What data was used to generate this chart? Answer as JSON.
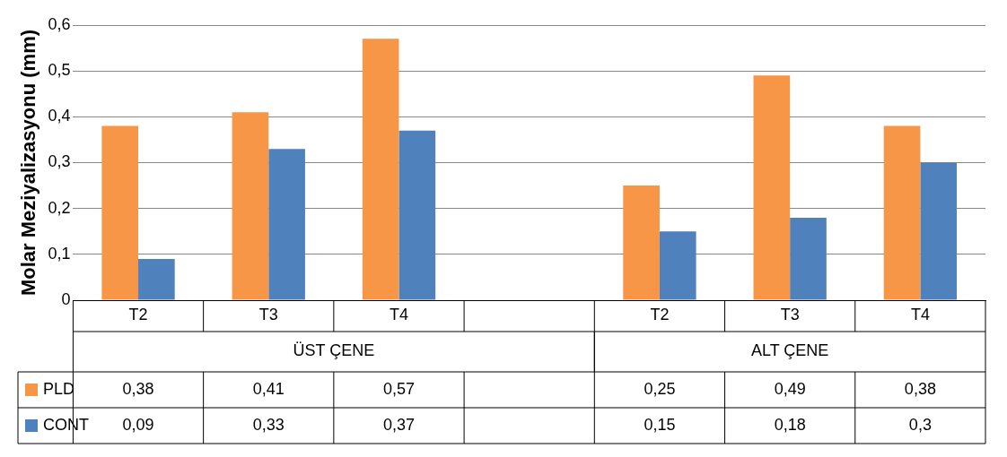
{
  "chart_data": {
    "type": "bar",
    "ylabel": "Molar Meziyalizasyonu (mm)",
    "categories": [
      "T2",
      "T3",
      "T4",
      null,
      "T2",
      "T3",
      "T4"
    ],
    "series": [
      {
        "name": "PLD",
        "color": "#f79646",
        "values": [
          0.38,
          0.41,
          0.57,
          null,
          0.25,
          0.49,
          0.38
        ],
        "value_labels": [
          "0,38",
          "0,41",
          "0,57",
          null,
          "0,25",
          "0,49",
          "0,38"
        ]
      },
      {
        "name": "CONT",
        "color": "#4f81bd",
        "values": [
          0.09,
          0.33,
          0.37,
          null,
          0.15,
          0.18,
          0.3
        ],
        "value_labels": [
          "0,09",
          "0,33",
          "0,37",
          null,
          "0,15",
          "0,18",
          "0,3"
        ]
      }
    ],
    "annotations": [
      "ÜST ÇENE",
      "ALT ÇENE"
    ],
    "ylim": [
      0,
      0.6
    ],
    "yticks": [
      0,
      {
        "value": 0.1,
        "label": "0,1"
      },
      {
        "value": 0.2,
        "label": "0,2"
      },
      {
        "value": 0.3,
        "label": "0,3"
      },
      {
        "value": 0.4,
        "label": "0,4"
      },
      {
        "value": 0.5,
        "label": "0,5"
      },
      {
        "value": 0.6,
        "label": "0,6"
      }
    ],
    "grid": "y",
    "legend": "left"
  }
}
